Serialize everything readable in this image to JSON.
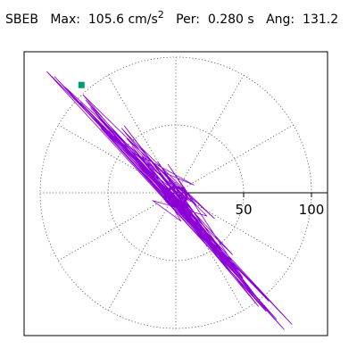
{
  "header": {
    "station": "SBEB",
    "max_label": "Max:",
    "max_value": "105.6",
    "max_units": "cm/s",
    "max_units_exp": "2",
    "per_label": "Per:",
    "per_value": "0.280",
    "per_units": "s",
    "ang_label": "Ang:",
    "ang_value": "131.2"
  },
  "chart_data": {
    "type": "polar-particle-motion",
    "radial_ticks": [
      50,
      100
    ],
    "radial_max": 100,
    "grid": "dotted",
    "trace_color": "#8b00d4",
    "marker_color": "#009a73",
    "max_angle_deg": 131.2,
    "max_amplitude": 105.6,
    "trace_points": [
      [
        0,
        0
      ],
      [
        6,
        -4
      ],
      [
        -8,
        3
      ],
      [
        12,
        -14
      ],
      [
        -15,
        10
      ],
      [
        4,
        -22
      ],
      [
        -18,
        -6
      ],
      [
        24,
        -18
      ],
      [
        -10,
        16
      ],
      [
        14,
        6
      ],
      [
        -26,
        28
      ],
      [
        20,
        -30
      ],
      [
        -36,
        34
      ],
      [
        30,
        -42
      ],
      [
        -22,
        12
      ],
      [
        40,
        -52
      ],
      [
        -48,
        44
      ],
      [
        16,
        -10
      ],
      [
        -6,
        22
      ],
      [
        52,
        -66
      ],
      [
        -60,
        58
      ],
      [
        34,
        -46
      ],
      [
        -40,
        52
      ],
      [
        62,
        -80
      ],
      [
        -74,
        70
      ],
      [
        20,
        -26
      ],
      [
        -30,
        30
      ],
      [
        70,
        -92
      ],
      [
        -86,
        82
      ],
      [
        10,
        -6
      ],
      [
        -20,
        16
      ],
      [
        46,
        -60
      ],
      [
        -52,
        48
      ],
      [
        78,
        -98
      ],
      [
        -94,
        90
      ],
      [
        22,
        -30
      ],
      [
        -14,
        24
      ],
      [
        58,
        -76
      ],
      [
        -66,
        66
      ],
      [
        36,
        -50
      ],
      [
        -44,
        40
      ],
      [
        84,
        -106
      ],
      [
        -100,
        94
      ],
      [
        12,
        -18
      ],
      [
        -8,
        14
      ],
      [
        50,
        -64
      ],
      [
        -56,
        54
      ],
      [
        72,
        -84
      ],
      [
        -80,
        74
      ],
      [
        28,
        -38
      ],
      [
        -34,
        36
      ],
      [
        64,
        -88
      ],
      [
        -70,
        72
      ],
      [
        18,
        -22
      ],
      [
        -24,
        18
      ],
      [
        42,
        -58
      ],
      [
        -62,
        62
      ],
      [
        90,
        -102
      ],
      [
        -68,
        64
      ],
      [
        26,
        -34
      ],
      [
        -16,
        20
      ],
      [
        54,
        -70
      ],
      [
        -46,
        46
      ],
      [
        38,
        -56
      ],
      [
        -58,
        50
      ],
      [
        8,
        -12
      ],
      [
        -12,
        8
      ],
      [
        44,
        -48
      ],
      [
        -38,
        42
      ],
      [
        30,
        -20
      ],
      [
        -28,
        36
      ],
      [
        60,
        -78
      ],
      [
        -72,
        76
      ],
      [
        14,
        -8
      ],
      [
        -4,
        10
      ],
      [
        24,
        -36
      ],
      [
        -32,
        22
      ],
      [
        48,
        -60
      ],
      [
        -42,
        50
      ],
      [
        6,
        -2
      ]
    ]
  }
}
